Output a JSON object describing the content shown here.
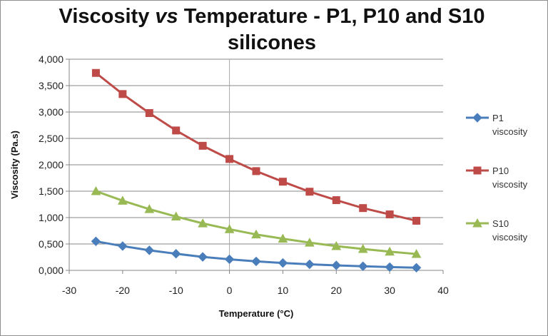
{
  "chart_data": {
    "type": "line",
    "title": {
      "part1": "Viscosity ",
      "vs": "vs",
      "part2": " Temperature - P1, P10 and S10",
      "line2": "silicones"
    },
    "xlabel": "Temperature (°C)",
    "ylabel": "Viscosity (Pa.s)",
    "xlim": [
      -30,
      40
    ],
    "ylim": [
      0,
      4000
    ],
    "x_ticks": [
      -30,
      -20,
      -10,
      0,
      10,
      20,
      30,
      40
    ],
    "x_tick_labels": [
      "-30",
      "-20",
      "-10",
      "0",
      "10",
      "20",
      "30",
      "40"
    ],
    "y_ticks": [
      0,
      500,
      1000,
      1500,
      2000,
      2500,
      3000,
      3500,
      4000
    ],
    "y_tick_labels": [
      "0,000",
      "0,500",
      "1,000",
      "1,500",
      "2,000",
      "2,500",
      "3,000",
      "3,500",
      "4,000"
    ],
    "grid": "horizontal",
    "legend_position": "right",
    "x": [
      -25,
      -20,
      -15,
      -10,
      -5,
      0,
      5,
      10,
      15,
      20,
      25,
      30,
      35
    ],
    "series": [
      {
        "name": "P1 viscosity",
        "legend_lines": [
          "P1",
          "viscosity"
        ],
        "color": "#4a7ebb",
        "marker": "diamond",
        "values": [
          550,
          460,
          380,
          315,
          255,
          210,
          170,
          140,
          115,
          95,
          78,
          62,
          50
        ]
      },
      {
        "name": "P10 viscosity",
        "legend_lines": [
          "P10",
          "viscosity"
        ],
        "color": "#be4b48",
        "marker": "square",
        "values": [
          3740,
          3340,
          2980,
          2650,
          2360,
          2110,
          1880,
          1680,
          1490,
          1330,
          1180,
          1060,
          940
        ]
      },
      {
        "name": "S10 viscosity",
        "legend_lines": [
          "S10",
          "viscosity"
        ],
        "color": "#98b954",
        "marker": "triangle",
        "values": [
          1500,
          1320,
          1160,
          1020,
          890,
          780,
          680,
          600,
          525,
          460,
          405,
          355,
          310
        ]
      }
    ]
  }
}
